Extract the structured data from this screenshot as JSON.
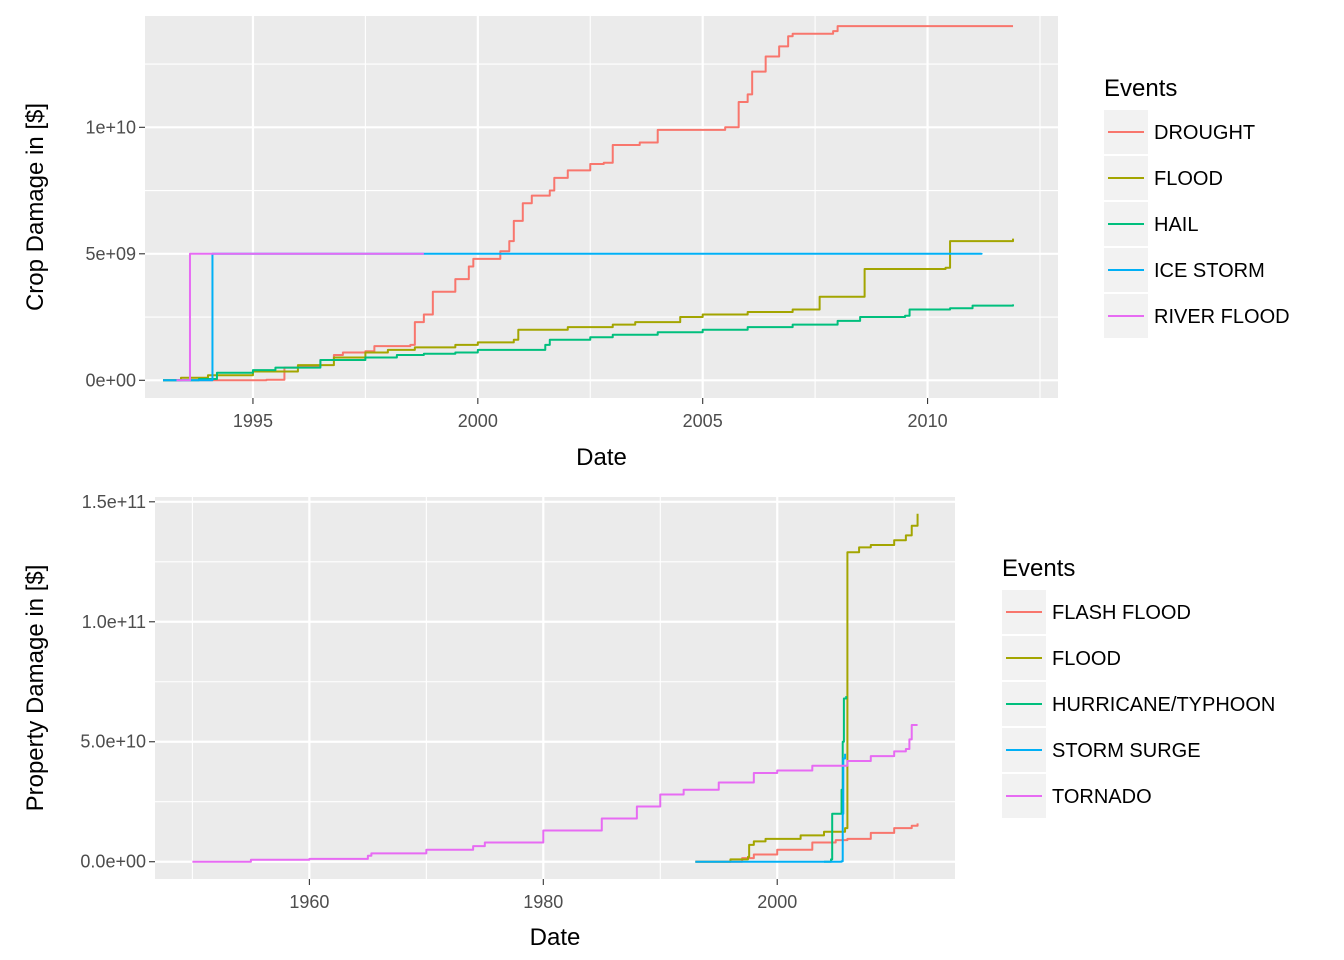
{
  "chart_data": [
    {
      "type": "line",
      "xlabel": "Date",
      "ylabel": "Crop Damage in [$]",
      "x_unit": "year",
      "xlim": [
        1992.6,
        2012.9
      ],
      "ylim": [
        -700000000.0,
        14400000000.0
      ],
      "xticks": [
        1995,
        2000,
        2005,
        2010
      ],
      "xtick_labels": [
        "1995",
        "2000",
        "2005",
        "2010"
      ],
      "yticks": [
        0,
        5000000000.0,
        10000000000.0
      ],
      "ytick_labels": [
        "0e+00",
        "5e+09",
        "1e+10"
      ],
      "grid": true,
      "legend": {
        "title": "Events",
        "position": "right"
      },
      "series": [
        {
          "name": "DROUGHT",
          "color": "#F8766D",
          "points": [
            [
              1993.0,
              0
            ],
            [
              1995.3,
              20000000.0
            ],
            [
              1995.7,
              500000000.0
            ],
            [
              1996.0,
              550000000.0
            ],
            [
              1996.5,
              800000000.0
            ],
            [
              1996.8,
              1000000000.0
            ],
            [
              1997.0,
              1100000000.0
            ],
            [
              1997.5,
              1150000000.0
            ],
            [
              1997.7,
              1350000000.0
            ],
            [
              1998.5,
              1400000000.0
            ],
            [
              1998.6,
              2300000000.0
            ],
            [
              1998.8,
              2600000000.0
            ],
            [
              1999.0,
              3500000000.0
            ],
            [
              1999.5,
              4000000000.0
            ],
            [
              1999.8,
              4500000000.0
            ],
            [
              1999.9,
              4800000000.0
            ],
            [
              2000.5,
              5100000000.0
            ],
            [
              2000.7,
              5500000000.0
            ],
            [
              2000.8,
              6300000000.0
            ],
            [
              2001.0,
              7000000000.0
            ],
            [
              2001.2,
              7300000000.0
            ],
            [
              2001.6,
              7500000000.0
            ],
            [
              2001.7,
              8000000000.0
            ],
            [
              2002.0,
              8300000000.0
            ],
            [
              2002.5,
              8550000000.0
            ],
            [
              2002.8,
              8600000000.0
            ],
            [
              2003.0,
              9300000000.0
            ],
            [
              2003.6,
              9400000000.0
            ],
            [
              2004.0,
              9900000000.0
            ],
            [
              2005.0,
              9900000000.0
            ],
            [
              2005.5,
              10000000000.0
            ],
            [
              2005.8,
              11000000000.0
            ],
            [
              2006.0,
              11300000000.0
            ],
            [
              2006.1,
              12200000000.0
            ],
            [
              2006.4,
              12800000000.0
            ],
            [
              2006.7,
              13200000000.0
            ],
            [
              2006.9,
              13600000000.0
            ],
            [
              2007.0,
              13700000000.0
            ],
            [
              2007.9,
              13800000000.0
            ],
            [
              2008.0,
              14000000000.0
            ],
            [
              2011.5,
              14000000000.0
            ],
            [
              2011.9,
              14000000000.0
            ]
          ]
        },
        {
          "name": "FLOOD",
          "color": "#A3A500",
          "points": [
            [
              1993.0,
              0
            ],
            [
              1993.4,
              100000000.0
            ],
            [
              1994.0,
              200000000.0
            ],
            [
              1995.0,
              350000000.0
            ],
            [
              1996.0,
              600000000.0
            ],
            [
              1996.8,
              900000000.0
            ],
            [
              1997.5,
              1100000000.0
            ],
            [
              1998.0,
              1200000000.0
            ],
            [
              1998.6,
              1300000000.0
            ],
            [
              1999.5,
              1400000000.0
            ],
            [
              2000.0,
              1500000000.0
            ],
            [
              2000.8,
              1600000000.0
            ],
            [
              2000.9,
              2000000000.0
            ],
            [
              2002.0,
              2100000000.0
            ],
            [
              2003.0,
              2200000000.0
            ],
            [
              2003.5,
              2300000000.0
            ],
            [
              2004.5,
              2500000000.0
            ],
            [
              2005.0,
              2600000000.0
            ],
            [
              2006.0,
              2700000000.0
            ],
            [
              2007.0,
              2800000000.0
            ],
            [
              2007.6,
              3300000000.0
            ],
            [
              2008.5,
              3300000000.0
            ],
            [
              2008.6,
              4400000000.0
            ],
            [
              2009.5,
              4400000000.0
            ],
            [
              2010.4,
              4450000000.0
            ],
            [
              2010.5,
              5500000000.0
            ],
            [
              2011.0,
              5500000000.0
            ],
            [
              2011.9,
              5600000000.0
            ]
          ]
        },
        {
          "name": "HAIL",
          "color": "#00BF7D",
          "points": [
            [
              1993.0,
              0
            ],
            [
              1993.8,
              50000000.0
            ],
            [
              1994.2,
              300000000.0
            ],
            [
              1995.0,
              400000000.0
            ],
            [
              1995.5,
              500000000.0
            ],
            [
              1996.5,
              800000000.0
            ],
            [
              1997.5,
              900000000.0
            ],
            [
              1998.2,
              1000000000.0
            ],
            [
              1998.8,
              1050000000.0
            ],
            [
              1999.5,
              1100000000.0
            ],
            [
              2000.0,
              1200000000.0
            ],
            [
              2001.5,
              1400000000.0
            ],
            [
              2001.6,
              1600000000.0
            ],
            [
              2002.5,
              1700000000.0
            ],
            [
              2003.0,
              1800000000.0
            ],
            [
              2004.0,
              1900000000.0
            ],
            [
              2005.0,
              2000000000.0
            ],
            [
              2006.0,
              2100000000.0
            ],
            [
              2007.0,
              2200000000.0
            ],
            [
              2008.0,
              2350000000.0
            ],
            [
              2008.5,
              2500000000.0
            ],
            [
              2009.5,
              2550000000.0
            ],
            [
              2009.6,
              2800000000.0
            ],
            [
              2010.5,
              2850000000.0
            ],
            [
              2011.0,
              2950000000.0
            ],
            [
              2011.9,
              3000000000.0
            ]
          ]
        },
        {
          "name": "ICE STORM",
          "color": "#00B0F6",
          "points": [
            [
              1993.0,
              0
            ],
            [
              1994.1,
              20000000.0
            ],
            [
              1994.1,
              5000000000.0
            ],
            [
              2000.0,
              5000000000.0
            ],
            [
              2011.2,
              5030000000.0
            ]
          ]
        },
        {
          "name": "RIVER FLOOD",
          "color": "#E76BF3",
          "points": [
            [
              1993.3,
              0
            ],
            [
              1993.6,
              5000000000.0
            ],
            [
              1998.8,
              5000000000.0
            ]
          ]
        }
      ]
    },
    {
      "type": "line",
      "xlabel": "Date",
      "ylabel": "Property Damage in [$]",
      "x_unit": "year",
      "xlim": [
        1946.8,
        2015.2
      ],
      "ylim": [
        -7200000000.0,
        152000000000.0
      ],
      "xticks": [
        1960,
        1980,
        2000
      ],
      "xtick_labels": [
        "1960",
        "1980",
        "2000"
      ],
      "yticks": [
        0,
        50000000000.0,
        100000000000.0,
        150000000000.0
      ],
      "ytick_labels": [
        "0.0e+00",
        "5.0e+10",
        "1.0e+11",
        "1.5e+11"
      ],
      "grid": true,
      "legend": {
        "title": "Events",
        "position": "right"
      },
      "series": [
        {
          "name": "FLASH FLOOD",
          "color": "#F8766D",
          "points": [
            [
              1993.0,
              0
            ],
            [
              1997.0,
              1500000000.0
            ],
            [
              1998.0,
              3000000000.0
            ],
            [
              2000.0,
              5000000000.0
            ],
            [
              2003.0,
              8000000000.0
            ],
            [
              2005.0,
              9000000000.0
            ],
            [
              2006.0,
              9500000000.0
            ],
            [
              2008.0,
              12000000000.0
            ],
            [
              2010.0,
              14000000000.0
            ],
            [
              2011.5,
              15000000000.0
            ],
            [
              2012.0,
              16000000000.0
            ]
          ]
        },
        {
          "name": "FLOOD",
          "color": "#A3A500",
          "points": [
            [
              1993.0,
              0
            ],
            [
              1996.0,
              1000000000.0
            ],
            [
              1997.5,
              2000000000.0
            ],
            [
              1997.6,
              7000000000.0
            ],
            [
              1998.0,
              8500000000.0
            ],
            [
              1999.0,
              9500000000.0
            ],
            [
              2002.0,
              11000000000.0
            ],
            [
              2004.0,
              12500000000.0
            ],
            [
              2005.8,
              14000000000.0
            ],
            [
              2006.0,
              15000000000.0
            ],
            [
              2006.0,
              129000000000.0
            ],
            [
              2007.0,
              131000000000.0
            ],
            [
              2008.0,
              132000000000.0
            ],
            [
              2010.0,
              134000000000.0
            ],
            [
              2011.0,
              136000000000.0
            ],
            [
              2011.5,
              140000000000.0
            ],
            [
              2012.0,
              145000000000.0
            ]
          ]
        },
        {
          "name": "HURRICANE/TYPHOON",
          "color": "#00BF7D",
          "points": [
            [
              2004.0,
              0
            ],
            [
              2004.6,
              1000000000.0
            ],
            [
              2004.7,
              20000000000.0
            ],
            [
              2005.3,
              20000000000.0
            ],
            [
              2005.5,
              30000000000.0
            ],
            [
              2005.6,
              50000000000.0
            ],
            [
              2005.7,
              68000000000.0
            ],
            [
              2005.9,
              69000000000.0
            ]
          ]
        },
        {
          "name": "STORM SURGE",
          "color": "#00B0F6",
          "points": [
            [
              1993.0,
              0
            ],
            [
              2005.5,
              200000000.0
            ],
            [
              2005.6,
              20000000000.0
            ],
            [
              2005.65,
              43000000000.0
            ],
            [
              2005.8,
              45000000000.0
            ]
          ]
        },
        {
          "name": "TORNADO",
          "color": "#E76BF3",
          "points": [
            [
              1950.0,
              0
            ],
            [
              1955.0,
              800000000.0
            ],
            [
              1960.0,
              1200000000.0
            ],
            [
              1965.0,
              2500000000.0
            ],
            [
              1965.3,
              3500000000.0
            ],
            [
              1970.0,
              5000000000.0
            ],
            [
              1974.0,
              6500000000.0
            ],
            [
              1975.0,
              8000000000.0
            ],
            [
              1980.0,
              13000000000.0
            ],
            [
              1985.0,
              18000000000.0
            ],
            [
              1988.0,
              23000000000.0
            ],
            [
              1990.0,
              28000000000.0
            ],
            [
              1992.0,
              30000000000.0
            ],
            [
              1995.0,
              33000000000.0
            ],
            [
              1998.0,
              37000000000.0
            ],
            [
              2000.0,
              38000000000.0
            ],
            [
              2003.0,
              40000000000.0
            ],
            [
              2006.0,
              42000000000.0
            ],
            [
              2008.0,
              44000000000.0
            ],
            [
              2010.0,
              46000000000.0
            ],
            [
              2011.0,
              47000000000.0
            ],
            [
              2011.3,
              51000000000.0
            ],
            [
              2011.5,
              57000000000.0
            ],
            [
              2012.0,
              57000000000.0
            ]
          ]
        }
      ]
    }
  ]
}
